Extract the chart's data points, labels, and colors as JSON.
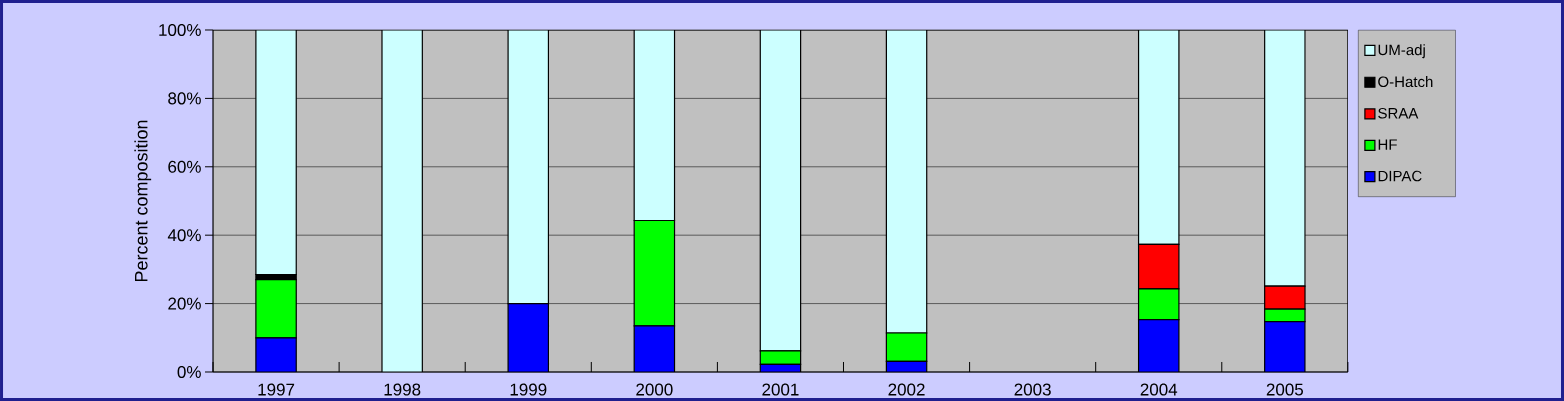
{
  "chart_data": {
    "type": "bar",
    "stacked": true,
    "ylabel": "Percent composition",
    "categories": [
      "1997",
      "1998",
      "1999",
      "2000",
      "2001",
      "2002",
      "2003",
      "2004",
      "2005"
    ],
    "series": [
      {
        "name": "DIPAC",
        "color": "#0000ff",
        "values": [
          10,
          0,
          20,
          13.5,
          2.2,
          3.1,
          0,
          15.3,
          14.7
        ]
      },
      {
        "name": "HF",
        "color": "#00ff00",
        "values": [
          17,
          0,
          0,
          30.8,
          4,
          8.3,
          0,
          9,
          3.7
        ]
      },
      {
        "name": "SRAA",
        "color": "#ff0000",
        "values": [
          0,
          0,
          0,
          0,
          0,
          0,
          0,
          13,
          6.7
        ]
      },
      {
        "name": "O-Hatch",
        "color": "#000000",
        "values": [
          1.5,
          0,
          0,
          0,
          0,
          0,
          0,
          0,
          0
        ]
      },
      {
        "name": "UM-adj",
        "color": "#ccffff",
        "values": [
          71.5,
          100,
          80,
          55.7,
          93.8,
          88.6,
          0,
          62.7,
          74.9
        ]
      }
    ],
    "ylim": [
      0,
      100
    ],
    "yticks": [
      {
        "value": 0,
        "label": "0%"
      },
      {
        "value": 20,
        "label": "20%"
      },
      {
        "value": 40,
        "label": "40%"
      },
      {
        "value": 60,
        "label": "60%"
      },
      {
        "value": 80,
        "label": "80%"
      },
      {
        "value": 100,
        "label": "100%"
      }
    ],
    "grid": "y",
    "legend": "right"
  }
}
